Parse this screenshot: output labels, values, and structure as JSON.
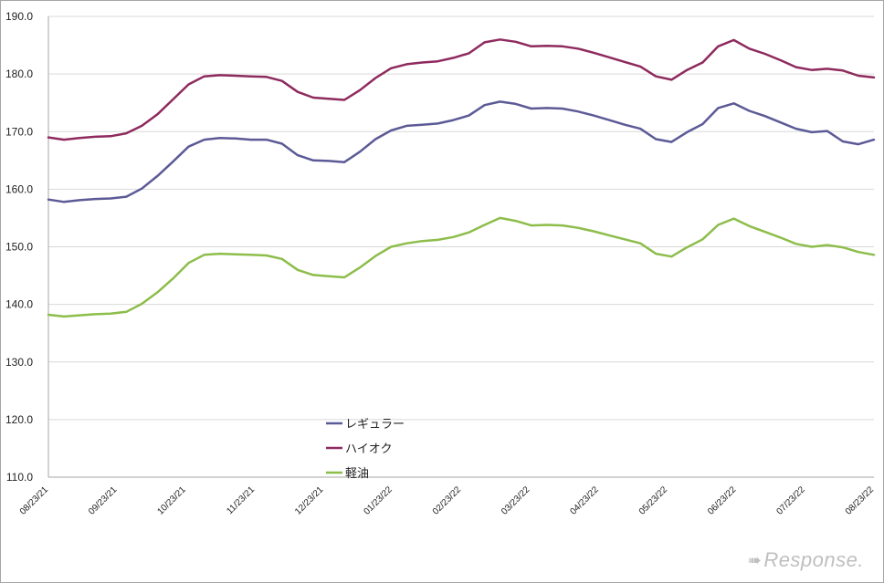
{
  "chart_data": {
    "type": "line",
    "title": "",
    "xlabel": "",
    "ylabel": "",
    "ylim": [
      110,
      190
    ],
    "yticks": [
      "110.0",
      "120.0",
      "130.0",
      "140.0",
      "150.0",
      "160.0",
      "170.0",
      "180.0",
      "190.0"
    ],
    "xtick_labels": [
      "08/23/21",
      "09/23/21",
      "10/23/21",
      "11/23/21",
      "12/23/21",
      "01/23/22",
      "02/23/22",
      "03/23/22",
      "04/23/22",
      "05/23/22",
      "06/23/22",
      "07/23/22",
      "08/23/22"
    ],
    "grid": "horizontal",
    "legend": "inside-lower-center",
    "series": [
      {
        "name": "レギュラー",
        "color": "#5c5a96",
        "values": [
          158.2,
          157.8,
          158.1,
          158.3,
          158.4,
          158.7,
          160.1,
          162.3,
          164.8,
          167.4,
          168.6,
          168.9,
          168.8,
          168.6,
          168.6,
          167.9,
          165.9,
          165.0,
          164.9,
          164.7,
          166.5,
          168.7,
          170.2,
          171.0,
          171.2,
          171.4,
          172.0,
          172.8,
          174.6,
          175.2,
          174.8,
          174.0,
          174.1,
          174.0,
          173.5,
          172.8,
          172.0,
          171.2,
          170.5,
          168.7,
          168.2,
          169.9,
          171.3,
          174.1,
          174.9,
          173.6,
          172.7,
          171.6,
          170.5,
          169.9,
          170.1,
          168.3,
          167.8,
          168.6
        ]
      },
      {
        "name": "ハイオク",
        "color": "#8e2a5e",
        "values": [
          169.0,
          168.6,
          168.9,
          169.1,
          169.2,
          169.7,
          171.0,
          173.0,
          175.6,
          178.2,
          179.6,
          179.8,
          179.7,
          179.6,
          179.5,
          178.8,
          176.9,
          175.9,
          175.7,
          175.5,
          177.2,
          179.3,
          181.0,
          181.7,
          182.0,
          182.2,
          182.8,
          183.6,
          185.5,
          186.0,
          185.6,
          184.8,
          184.9,
          184.8,
          184.4,
          183.7,
          182.9,
          182.1,
          181.3,
          179.6,
          179.0,
          180.7,
          182.0,
          184.8,
          185.9,
          184.4,
          183.5,
          182.4,
          181.2,
          180.7,
          180.9,
          180.6,
          179.7,
          179.4
        ]
      },
      {
        "name": "軽油",
        "color": "#8dbd4b",
        "values": [
          138.2,
          137.9,
          138.1,
          138.3,
          138.4,
          138.7,
          140.1,
          142.1,
          144.5,
          147.2,
          148.6,
          148.8,
          148.7,
          148.6,
          148.5,
          147.9,
          146.0,
          145.1,
          144.9,
          144.7,
          146.4,
          148.4,
          150.0,
          150.6,
          151.0,
          151.2,
          151.7,
          152.5,
          153.8,
          155.0,
          154.5,
          153.7,
          153.8,
          153.7,
          153.3,
          152.7,
          152.0,
          151.3,
          150.6,
          148.8,
          148.3,
          149.9,
          151.3,
          153.8,
          154.9,
          153.6,
          152.6,
          151.6,
          150.5,
          150.0,
          150.3,
          149.9,
          149.1,
          148.6
        ]
      }
    ]
  },
  "watermark": {
    "icon": "response-logo-icon",
    "text": "Response."
  }
}
